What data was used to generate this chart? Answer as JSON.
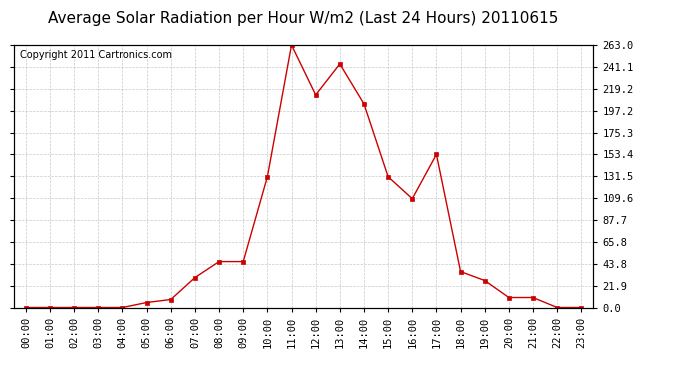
{
  "title": "Average Solar Radiation per Hour W/m2 (Last 24 Hours) 20110615",
  "copyright": "Copyright 2011 Cartronics.com",
  "hours": [
    "00:00",
    "01:00",
    "02:00",
    "03:00",
    "04:00",
    "05:00",
    "06:00",
    "07:00",
    "08:00",
    "09:00",
    "10:00",
    "11:00",
    "12:00",
    "13:00",
    "14:00",
    "15:00",
    "16:00",
    "17:00",
    "18:00",
    "19:00",
    "20:00",
    "21:00",
    "22:00",
    "23:00"
  ],
  "values": [
    0.0,
    0.0,
    0.0,
    0.0,
    0.0,
    5.0,
    8.0,
    30.0,
    46.0,
    46.0,
    131.0,
    263.0,
    213.0,
    244.0,
    204.0,
    131.0,
    109.0,
    153.4,
    36.0,
    27.0,
    10.0,
    10.0,
    0.0,
    0.0
  ],
  "line_color": "#cc0000",
  "marker_color": "#cc0000",
  "bg_color": "#ffffff",
  "plot_bg_color": "#ffffff",
  "grid_color": "#bbbbbb",
  "yticks": [
    0.0,
    21.9,
    43.8,
    65.8,
    87.7,
    109.6,
    131.5,
    153.4,
    175.3,
    197.2,
    219.2,
    241.1,
    263.0
  ],
  "ylim": [
    0.0,
    263.0
  ],
  "title_fontsize": 11,
  "copyright_fontsize": 7,
  "tick_fontsize": 7.5
}
